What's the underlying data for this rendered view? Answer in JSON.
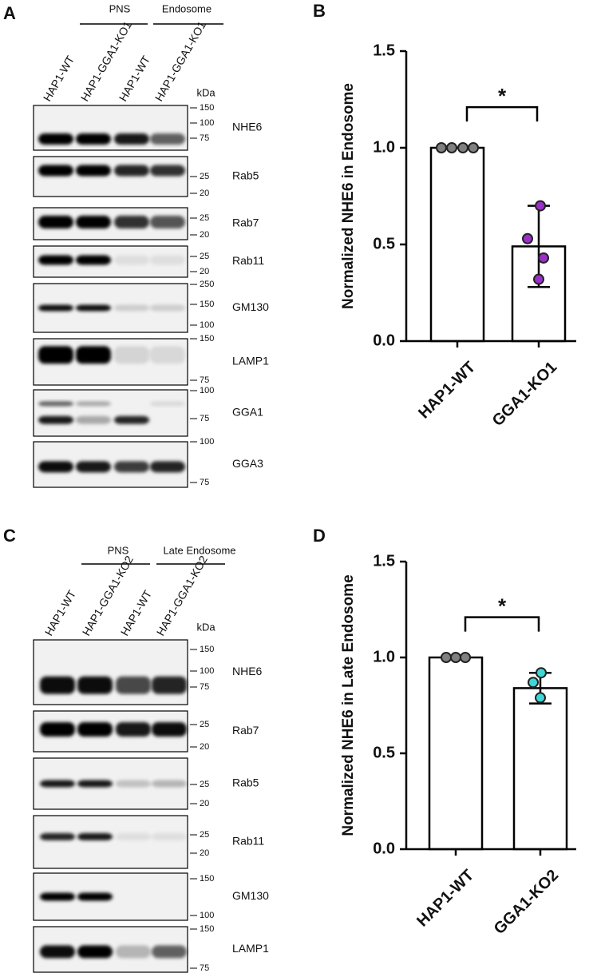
{
  "blots": [
    {
      "panel_label": "A",
      "groups": [
        "PNS",
        "Endosome"
      ],
      "lanes": [
        "HAP1-WT",
        "HAP1-GGA1-KO1",
        "HAP1-WT",
        "HAP1-GGA1-KO1"
      ],
      "unit": "kDa",
      "rows": [
        {
          "label": "NHE6",
          "markers": [
            "150",
            "100",
            "75"
          ]
        },
        {
          "label": "Rab5",
          "markers": [
            "25",
            "20"
          ]
        },
        {
          "label": "Rab7",
          "markers": [
            "25",
            "20"
          ]
        },
        {
          "label": "Rab11",
          "markers": [
            "25",
            "20"
          ]
        },
        {
          "label": "GM130",
          "markers": [
            "250",
            "150",
            "100"
          ]
        },
        {
          "label": "LAMP1",
          "markers": [
            "150",
            "75"
          ]
        },
        {
          "label": "GGA1",
          "markers": [
            "100",
            "75"
          ]
        },
        {
          "label": "GGA3",
          "markers": [
            "100",
            "75"
          ]
        }
      ]
    },
    {
      "panel_label": "C",
      "groups": [
        "PNS",
        "Late Endosome"
      ],
      "lanes": [
        "HAP1-WT",
        "HAP1-GGA1-KO2",
        "HAP1-WT",
        "HAP1-GGA1-KO2"
      ],
      "unit": "kDa",
      "rows": [
        {
          "label": "NHE6",
          "markers": [
            "150",
            "100",
            "75"
          ]
        },
        {
          "label": "Rab7",
          "markers": [
            "25",
            "20"
          ]
        },
        {
          "label": "Rab5",
          "markers": [
            "25",
            "20"
          ]
        },
        {
          "label": "Rab11",
          "markers": [
            "25",
            "20"
          ]
        },
        {
          "label": "GM130",
          "markers": [
            "150",
            "100"
          ]
        },
        {
          "label": "LAMP1",
          "markers": [
            "150",
            "75"
          ]
        }
      ]
    }
  ],
  "chart_data": [
    {
      "type": "bar",
      "panel_label": "B",
      "ylabel": "Normalized NHE6 in Endosome",
      "categories": [
        "HAP1-WT",
        "GGA1-KO1"
      ],
      "values": [
        1.0,
        0.49
      ],
      "errors": [
        0,
        0.21
      ],
      "points": [
        [
          1.0,
          1.0,
          1.0,
          1.0
        ],
        [
          0.7,
          0.53,
          0.43,
          0.32
        ]
      ],
      "color": "#ffffff",
      "point_colors": [
        "#808080",
        "#9b30c8"
      ],
      "ylim": [
        0,
        1.5
      ],
      "yticks": [
        {
          "value": 0,
          "label": "0.0"
        },
        {
          "value": 0.5,
          "label": "0.5"
        },
        {
          "value": 1,
          "label": "1.0"
        },
        {
          "value": 1.5,
          "label": "1.5"
        }
      ],
      "annotation": "*"
    },
    {
      "type": "bar",
      "panel_label": "D",
      "ylabel": "Normalized NHE6 in Late Endosome",
      "categories": [
        "HAP1-WT",
        "GGA1-KO2"
      ],
      "values": [
        1.0,
        0.84
      ],
      "errors": [
        0,
        0.08
      ],
      "points": [
        [
          1.0,
          1.0,
          1.0
        ],
        [
          0.92,
          0.87,
          0.79
        ]
      ],
      "color": "#ffffff",
      "point_colors": [
        "#808080",
        "#3fd6d6"
      ],
      "ylim": [
        0,
        1.5
      ],
      "yticks": [
        {
          "value": 0,
          "label": "0.0"
        },
        {
          "value": 0.5,
          "label": "0.5"
        },
        {
          "value": 1,
          "label": "1.0"
        },
        {
          "value": 1.5,
          "label": "1.5"
        }
      ],
      "annotation": "*"
    }
  ]
}
